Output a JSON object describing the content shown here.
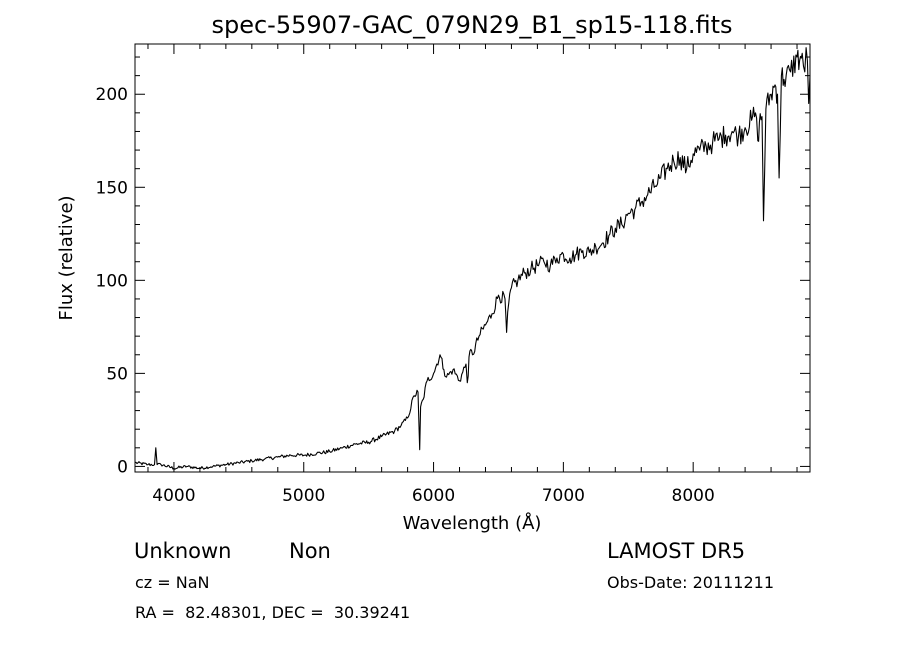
{
  "chart_data": {
    "type": "line",
    "title": "spec-55907-GAC_079N29_B1_sp15-118.fits",
    "xlabel": "Wavelength (Å)",
    "ylabel": "Flux (relative)",
    "xlim": [
      3700,
      8900
    ],
    "ylim": [
      -3,
      227
    ],
    "xticks": [
      {
        "value": 4000,
        "label": "4000"
      },
      {
        "value": 5000,
        "label": "5000"
      },
      {
        "value": 6000,
        "label": "6000"
      },
      {
        "value": 7000,
        "label": "7000"
      },
      {
        "value": 8000,
        "label": "8000"
      }
    ],
    "yticks": [
      {
        "value": 0,
        "label": "0"
      },
      {
        "value": 50,
        "label": "50"
      },
      {
        "value": 100,
        "label": "100"
      },
      {
        "value": 150,
        "label": "150"
      },
      {
        "value": 200,
        "label": "200"
      }
    ],
    "x": [
      3700,
      3800,
      3850,
      3860,
      3870,
      3900,
      4000,
      4100,
      4200,
      4300,
      4400,
      4500,
      4600,
      4700,
      4800,
      4900,
      5000,
      5100,
      5200,
      5300,
      5400,
      5500,
      5600,
      5700,
      5750,
      5800,
      5850,
      5880,
      5893,
      5900,
      5920,
      5950,
      6000,
      6050,
      6080,
      6100,
      6150,
      6200,
      6250,
      6260,
      6280,
      6300,
      6350,
      6400,
      6450,
      6500,
      6550,
      6563,
      6580,
      6600,
      6650,
      6700,
      6750,
      6800,
      6850,
      6900,
      6950,
      7000,
      7050,
      7100,
      7150,
      7200,
      7250,
      7300,
      7350,
      7400,
      7450,
      7500,
      7550,
      7600,
      7650,
      7700,
      7750,
      7800,
      7850,
      7900,
      7950,
      8000,
      8050,
      8100,
      8150,
      8200,
      8250,
      8300,
      8350,
      8400,
      8450,
      8480,
      8498,
      8510,
      8530,
      8542,
      8560,
      8600,
      8630,
      8650,
      8662,
      8680,
      8700,
      8750,
      8800,
      8820,
      8840,
      8850,
      8860,
      8870,
      8880,
      8890,
      8900
    ],
    "y": [
      2,
      1,
      1,
      10,
      1,
      1,
      -1,
      0,
      -1,
      0,
      1,
      2,
      3,
      4,
      5,
      6,
      6,
      7,
      8,
      10,
      12,
      13,
      16,
      19,
      22,
      26,
      38,
      40,
      9,
      32,
      36,
      46,
      50,
      60,
      52,
      48,
      52,
      46,
      55,
      45,
      62,
      60,
      70,
      76,
      82,
      92,
      90,
      72,
      88,
      96,
      100,
      104,
      106,
      108,
      110,
      108,
      112,
      114,
      112,
      114,
      116,
      115,
      118,
      120,
      124,
      128,
      130,
      136,
      138,
      142,
      146,
      150,
      155,
      160,
      164,
      166,
      160,
      168,
      170,
      172,
      174,
      176,
      178,
      180,
      178,
      182,
      186,
      190,
      175,
      185,
      188,
      132,
      192,
      200,
      205,
      200,
      155,
      210,
      208,
      212,
      220,
      218,
      222,
      215,
      212,
      225,
      218,
      195,
      210
    ]
  },
  "info": {
    "object_class": "Unknown",
    "object_subclass": "Non",
    "cz": "cz = NaN",
    "coords": "RA =  82.48301, DEC =  30.39241",
    "survey": "LAMOST DR5",
    "obs_date": "Obs-Date: 20111211"
  }
}
